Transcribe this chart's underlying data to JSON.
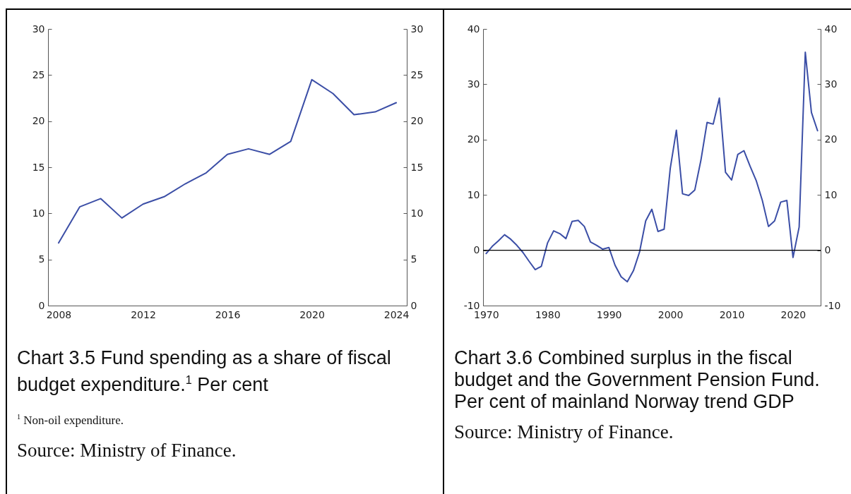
{
  "chart_data": [
    {
      "type": "line",
      "title": "Chart 3.5 Fund spending as a share of fiscal budget expenditure.$^{1}$ Per cent",
      "annotations": [
        "$^{1}$ Non-oil expenditure.",
        "Source: Ministry of Finance."
      ],
      "x": [
        2008,
        2009,
        2010,
        2011,
        2012,
        2013,
        2014,
        2015,
        2016,
        2017,
        2018,
        2019,
        2020,
        2021,
        2022,
        2023,
        2024
      ],
      "series": [
        {
          "color": "#3b4ea6",
          "values": [
            6.8,
            10.7,
            11.6,
            9.5,
            11.0,
            11.8,
            13.2,
            14.4,
            16.4,
            17.0,
            16.4,
            17.8,
            24.5,
            23.0,
            20.7,
            21.0,
            22.0
          ]
        }
      ],
      "xlim": [
        2007.5,
        2024.5
      ],
      "xticks": [
        2008,
        2012,
        2016,
        2020,
        2024
      ],
      "ylim": [
        0,
        30
      ],
      "yticks": [
        0,
        5,
        10,
        15,
        20,
        25,
        30
      ],
      "y2lim": [
        0,
        30
      ],
      "y2ticks": [
        0,
        5,
        10,
        15,
        20,
        25,
        30
      ]
    },
    {
      "type": "line",
      "title": "Chart 3.6 Combined surplus in the fiscal budget and the Government Pension Fund. Per cent of mainland Norway trend GDP",
      "annotations": [
        "Source: Ministry of Finance."
      ],
      "x": [
        1970,
        1971,
        1972,
        1973,
        1974,
        1975,
        1976,
        1977,
        1978,
        1979,
        1980,
        1981,
        1982,
        1983,
        1984,
        1985,
        1986,
        1987,
        1988,
        1989,
        1990,
        1991,
        1992,
        1993,
        1994,
        1995,
        1996,
        1997,
        1998,
        1999,
        2000,
        2001,
        2002,
        2003,
        2004,
        2005,
        2006,
        2007,
        2008,
        2009,
        2010,
        2011,
        2012,
        2013,
        2014,
        2015,
        2016,
        2017,
        2018,
        2019,
        2020,
        2021,
        2022,
        2023,
        2024
      ],
      "series": [
        {
          "color": "#3b4ea6",
          "values": [
            -0.6,
            0.7,
            1.7,
            2.8,
            2.0,
            0.9,
            -0.4,
            -2.0,
            -3.5,
            -2.9,
            1.3,
            3.5,
            3.0,
            2.1,
            5.2,
            5.4,
            4.3,
            1.5,
            0.9,
            0.2,
            0.5,
            -2.7,
            -4.8,
            -5.7,
            -3.7,
            -0.3,
            5.3,
            7.4,
            3.4,
            3.8,
            14.8,
            21.7,
            10.2,
            9.9,
            10.9,
            16.3,
            23.1,
            22.8,
            27.5,
            14.1,
            12.7,
            17.3,
            18.0,
            15.2,
            12.6,
            9.0,
            4.3,
            5.3,
            8.7,
            9.0,
            -1.3,
            4.2,
            35.8,
            24.9,
            21.6
          ]
        }
      ],
      "xlim": [
        1969.5,
        2024.5
      ],
      "xticks": [
        1970,
        1980,
        1990,
        2000,
        2010,
        2020
      ],
      "ylim": [
        -10,
        40
      ],
      "yticks": [
        -10,
        0,
        10,
        20,
        30,
        40
      ],
      "y2lim": [
        -10,
        40
      ],
      "y2ticks": [
        -10,
        0,
        10,
        20,
        30,
        40
      ],
      "ref_lines": [
        {
          "axis": "y",
          "value": 0,
          "color": "#000000"
        }
      ]
    }
  ]
}
